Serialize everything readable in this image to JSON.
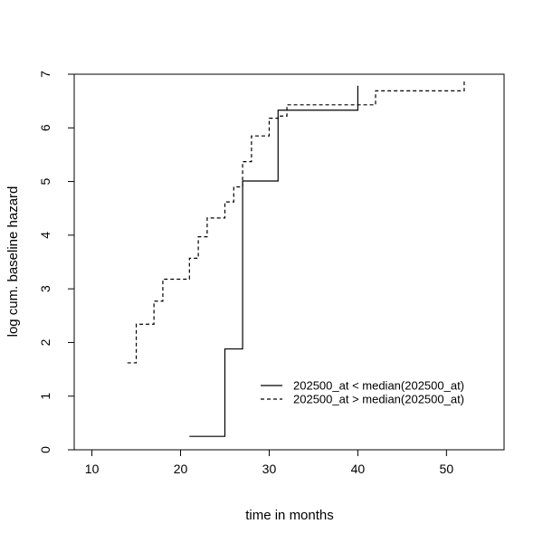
{
  "chart_data": {
    "type": "line",
    "title": "",
    "xlabel": "time in months",
    "ylabel": "log cum. baseline hazard",
    "xlim": [
      8,
      56.5
    ],
    "ylim": [
      0,
      7
    ],
    "x_ticks": [
      10,
      20,
      30,
      40,
      50
    ],
    "y_ticks": [
      0,
      1,
      2,
      3,
      4,
      5,
      6,
      7
    ],
    "x_tick_labels": [
      "10",
      "20",
      "30",
      "40",
      "50"
    ],
    "y_tick_labels": [
      "0",
      "1",
      "2",
      "3",
      "4",
      "5",
      "6",
      "7"
    ],
    "grid": false,
    "legend_position": "bottom-right",
    "series": [
      {
        "name": "202500_at < median(202500_at)",
        "line_style": "solid",
        "color": "#000000",
        "x": [
          21,
          25,
          27,
          31,
          40
        ],
        "y": [
          0.25,
          1.88,
          5.01,
          6.33,
          6.78
        ]
      },
      {
        "name": "202500_at > median(202500_at)",
        "line_style": "dashed",
        "color": "#000000",
        "x": [
          14,
          15,
          17,
          18,
          21,
          22,
          23,
          25,
          26,
          27,
          28,
          30,
          31,
          32,
          33,
          42,
          52
        ],
        "y": [
          1.62,
          2.34,
          2.77,
          3.18,
          3.57,
          3.97,
          4.32,
          4.62,
          4.9,
          5.37,
          5.85,
          6.18,
          6.22,
          6.43,
          6.43,
          6.69,
          6.88
        ]
      }
    ]
  }
}
